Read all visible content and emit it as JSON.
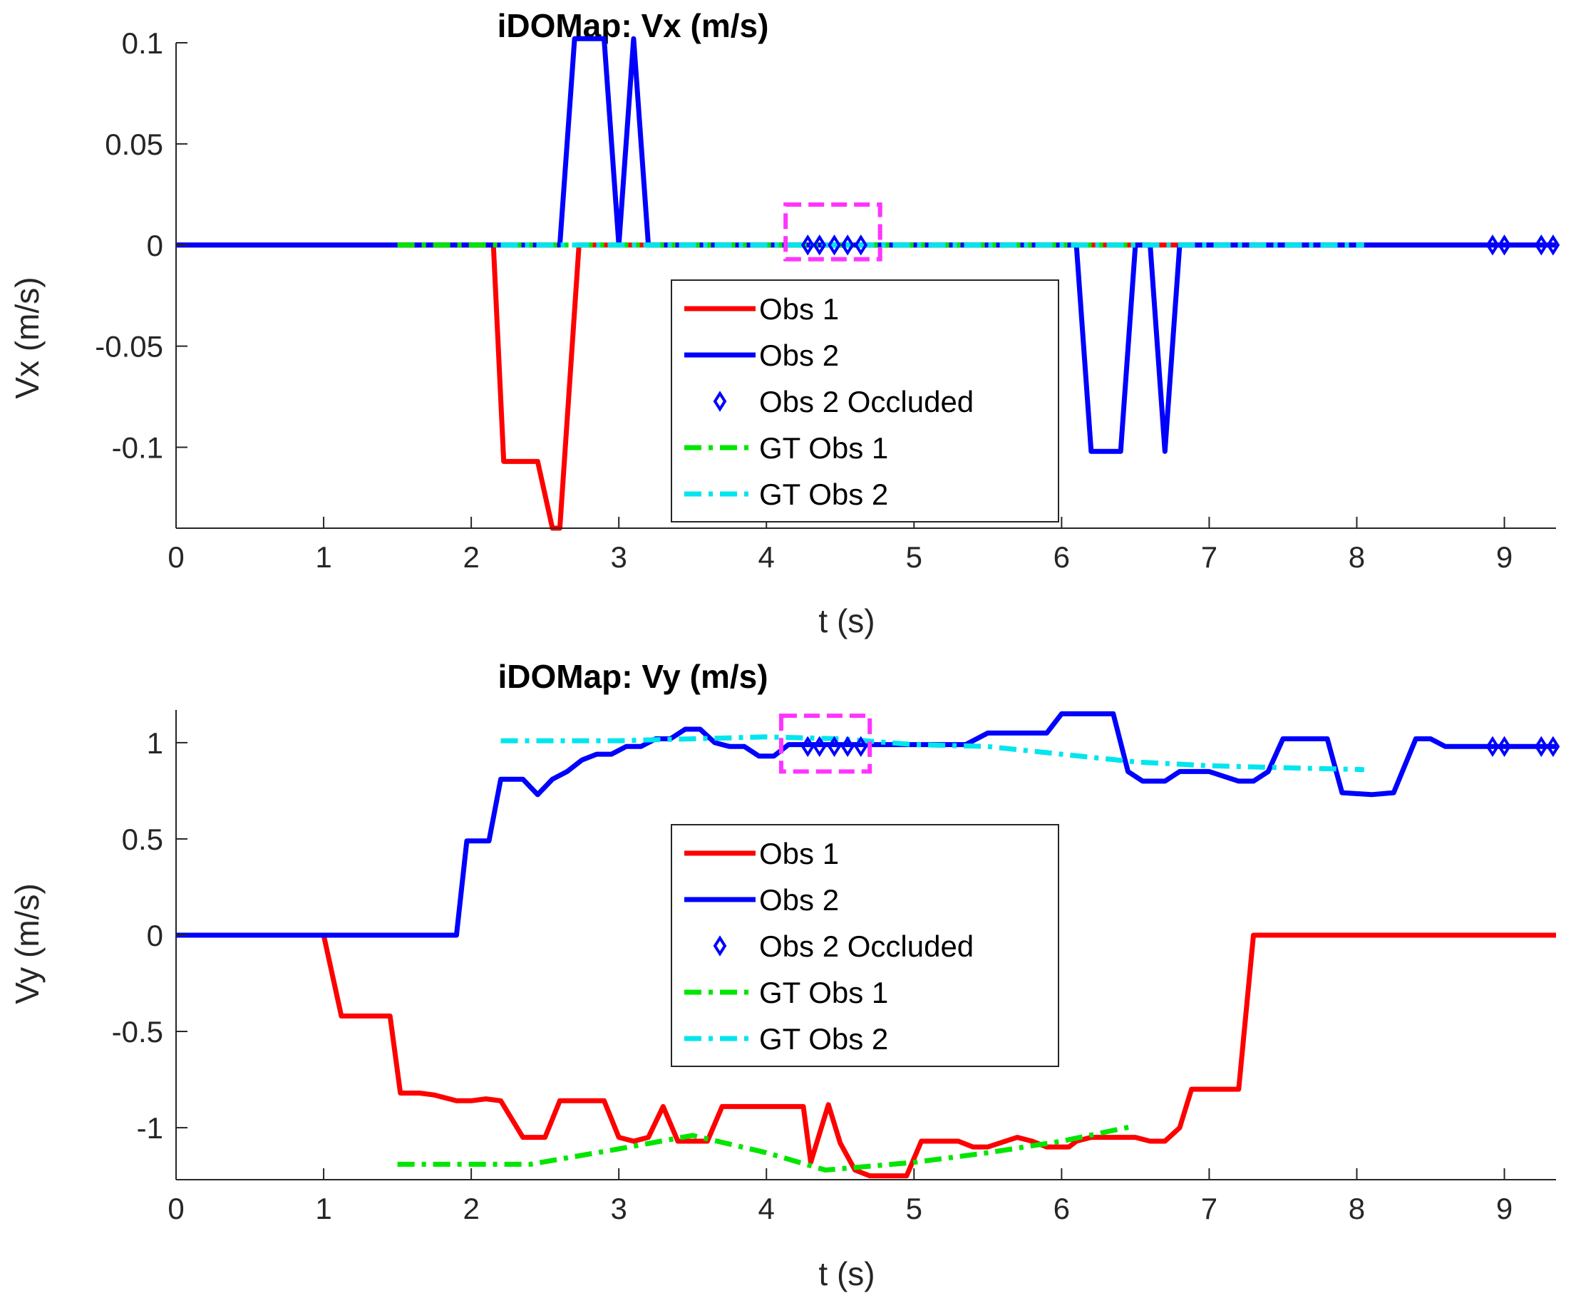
{
  "colors": {
    "obs1": "#ff0000",
    "obs2": "#0000ff",
    "gt_obs1": "#00e600",
    "gt_obs2": "#00e5ee",
    "highlight": "#ff33ff"
  },
  "chart_data": [
    {
      "type": "line",
      "title": "iDOMap: Vx (m/s)",
      "xlabel": "t (s)",
      "ylabel": "Vx (m/s)",
      "xlim": [
        0,
        9.35
      ],
      "ylim": [
        -0.14,
        0.1
      ],
      "xticks": [
        0,
        1,
        2,
        3,
        4,
        5,
        6,
        7,
        8,
        9
      ],
      "xtick_labels": [
        "0",
        "1",
        "2",
        "3",
        "4",
        "5",
        "6",
        "7",
        "8",
        "9"
      ],
      "yticks": [
        0.1,
        0.05,
        0,
        -0.05,
        -0.1
      ],
      "ytick_labels": [
        "0.1",
        "0.05",
        "0",
        "-0.05",
        "-0.1"
      ],
      "legend_position": "center",
      "highlight_box": {
        "x": [
          4.13,
          4.77
        ],
        "y": [
          -0.007,
          0.02
        ]
      },
      "series": [
        {
          "name": "Obs 1",
          "style": "solid",
          "color_key": "obs1",
          "x": [
            0,
            2.1,
            2.15,
            2.22,
            2.45,
            2.55,
            2.6,
            2.73,
            2.78,
            9.35
          ],
          "y": [
            0,
            0,
            0,
            -0.107,
            -0.107,
            -0.14,
            -0.14,
            0,
            0,
            0
          ]
        },
        {
          "name": "Obs 2",
          "style": "solid",
          "color_key": "obs2",
          "x": [
            0,
            2.6,
            2.7,
            2.9,
            3.0,
            3.1,
            3.2,
            6.1,
            6.2,
            6.4,
            6.5,
            6.6,
            6.7,
            6.8,
            9.35
          ],
          "y": [
            0,
            0,
            0.102,
            0.102,
            0,
            0.102,
            0,
            0,
            -0.102,
            -0.102,
            0,
            0,
            -0.102,
            0,
            0
          ]
        },
        {
          "name": "Obs 2 Occluded",
          "style": "marker",
          "color_key": "obs2",
          "x": [
            4.28,
            4.36,
            4.46,
            4.55,
            4.64,
            8.92,
            9.0,
            9.25,
            9.33
          ],
          "y": [
            0,
            0,
            0,
            0,
            0,
            0,
            0,
            0,
            0
          ]
        },
        {
          "name": "GT Obs 1",
          "style": "dashdot",
          "color_key": "gt_obs1",
          "x": [
            1.5,
            6.5
          ],
          "y": [
            0,
            0
          ]
        },
        {
          "name": "GT Obs 2",
          "style": "dashdot",
          "color_key": "gt_obs2",
          "x": [
            2.2,
            8.05
          ],
          "y": [
            0,
            0
          ]
        }
      ]
    },
    {
      "type": "line",
      "title": "iDOMap: Vy (m/s)",
      "xlabel": "t (s)",
      "ylabel": "Vy (m/s)",
      "xlim": [
        0,
        9.35
      ],
      "ylim": [
        -1.27,
        1.17
      ],
      "xticks": [
        0,
        1,
        2,
        3,
        4,
        5,
        6,
        7,
        8,
        9
      ],
      "xtick_labels": [
        "0",
        "1",
        "2",
        "3",
        "4",
        "5",
        "6",
        "7",
        "8",
        "9"
      ],
      "yticks": [
        1,
        0.5,
        0,
        -0.5,
        -1
      ],
      "ytick_labels": [
        "1",
        "0.5",
        "0",
        "-0.5",
        "-1"
      ],
      "legend_position": "center",
      "highlight_box": {
        "x": [
          4.1,
          4.7
        ],
        "y": [
          0.85,
          1.14
        ]
      },
      "series": [
        {
          "name": "Obs 1",
          "style": "solid",
          "color_key": "obs1",
          "x": [
            0,
            1.0,
            1.12,
            1.45,
            1.52,
            1.65,
            1.75,
            1.9,
            2.0,
            2.1,
            2.2,
            2.35,
            2.5,
            2.6,
            2.7,
            2.9,
            3.0,
            3.1,
            3.2,
            3.3,
            3.4,
            3.6,
            3.7,
            4.0,
            4.2,
            4.25,
            4.3,
            4.42,
            4.5,
            4.6,
            4.7,
            4.95,
            5.05,
            5.1,
            5.3,
            5.4,
            5.5,
            5.7,
            5.8,
            5.9,
            6.05,
            6.1,
            6.2,
            6.5,
            6.6,
            6.7,
            6.8,
            6.88,
            7.0,
            7.2,
            7.3,
            9.35
          ],
          "y": [
            0,
            0,
            -0.42,
            -0.42,
            -0.82,
            -0.82,
            -0.83,
            -0.86,
            -0.86,
            -0.85,
            -0.86,
            -1.05,
            -1.05,
            -0.86,
            -0.86,
            -0.86,
            -1.05,
            -1.07,
            -1.05,
            -0.89,
            -1.07,
            -1.07,
            -0.89,
            -0.89,
            -0.89,
            -0.89,
            -1.18,
            -0.88,
            -1.08,
            -1.22,
            -1.25,
            -1.25,
            -1.07,
            -1.07,
            -1.07,
            -1.1,
            -1.1,
            -1.05,
            -1.07,
            -1.1,
            -1.1,
            -1.07,
            -1.05,
            -1.05,
            -1.07,
            -1.07,
            -1.0,
            -0.8,
            -0.8,
            -0.8,
            0,
            0
          ]
        },
        {
          "name": "Obs 2",
          "style": "solid",
          "color_key": "obs2",
          "x": [
            0,
            1.9,
            1.97,
            2.05,
            2.12,
            2.2,
            2.35,
            2.45,
            2.55,
            2.65,
            2.75,
            2.85,
            2.95,
            3.05,
            3.15,
            3.25,
            3.35,
            3.45,
            3.55,
            3.65,
            3.75,
            3.85,
            3.95,
            4.05,
            4.15,
            4.3,
            4.65,
            5.15,
            5.35,
            5.5,
            5.6,
            5.9,
            6.0,
            6.1,
            6.35,
            6.45,
            6.55,
            6.7,
            6.8,
            6.9,
            7.0,
            7.2,
            7.3,
            7.4,
            7.5,
            7.6,
            7.8,
            7.9,
            8.1,
            8.25,
            8.4,
            8.5,
            8.6,
            9.35
          ],
          "y": [
            0,
            0,
            0.49,
            0.49,
            0.49,
            0.81,
            0.81,
            0.73,
            0.81,
            0.85,
            0.91,
            0.94,
            0.94,
            0.98,
            0.98,
            1.02,
            1.02,
            1.07,
            1.07,
            1.0,
            0.98,
            0.98,
            0.93,
            0.93,
            0.99,
            0.99,
            0.99,
            0.99,
            0.99,
            1.05,
            1.05,
            1.05,
            1.15,
            1.15,
            1.15,
            0.85,
            0.8,
            0.8,
            0.85,
            0.85,
            0.85,
            0.8,
            0.8,
            0.85,
            1.02,
            1.02,
            1.02,
            0.74,
            0.73,
            0.74,
            1.02,
            1.02,
            0.98,
            0.98
          ]
        },
        {
          "name": "Obs 2 Occluded",
          "style": "marker",
          "color_key": "obs2",
          "x": [
            4.28,
            4.36,
            4.46,
            4.55,
            4.64,
            8.92,
            9.0,
            9.25,
            9.33
          ],
          "y": [
            0.98,
            0.98,
            0.98,
            0.98,
            0.98,
            0.98,
            0.98,
            0.98,
            0.98
          ]
        },
        {
          "name": "GT Obs 1",
          "style": "dashdot",
          "color_key": "gt_obs1",
          "x": [
            1.5,
            2.4,
            3.0,
            3.5,
            4.0,
            4.4,
            5.0,
            5.5,
            6.0,
            6.5
          ],
          "y": [
            -1.19,
            -1.19,
            -1.11,
            -1.04,
            -1.13,
            -1.22,
            -1.18,
            -1.13,
            -1.07,
            -0.99
          ]
        },
        {
          "name": "GT Obs 2",
          "style": "dashdot",
          "color_key": "gt_obs2",
          "x": [
            2.2,
            3.0,
            3.5,
            4.0,
            4.5,
            5.0,
            5.5,
            6.0,
            6.5,
            7.0,
            7.5,
            8.05
          ],
          "y": [
            1.01,
            1.01,
            1.02,
            1.03,
            1.02,
            0.99,
            0.98,
            0.94,
            0.9,
            0.88,
            0.87,
            0.86
          ]
        }
      ]
    }
  ]
}
